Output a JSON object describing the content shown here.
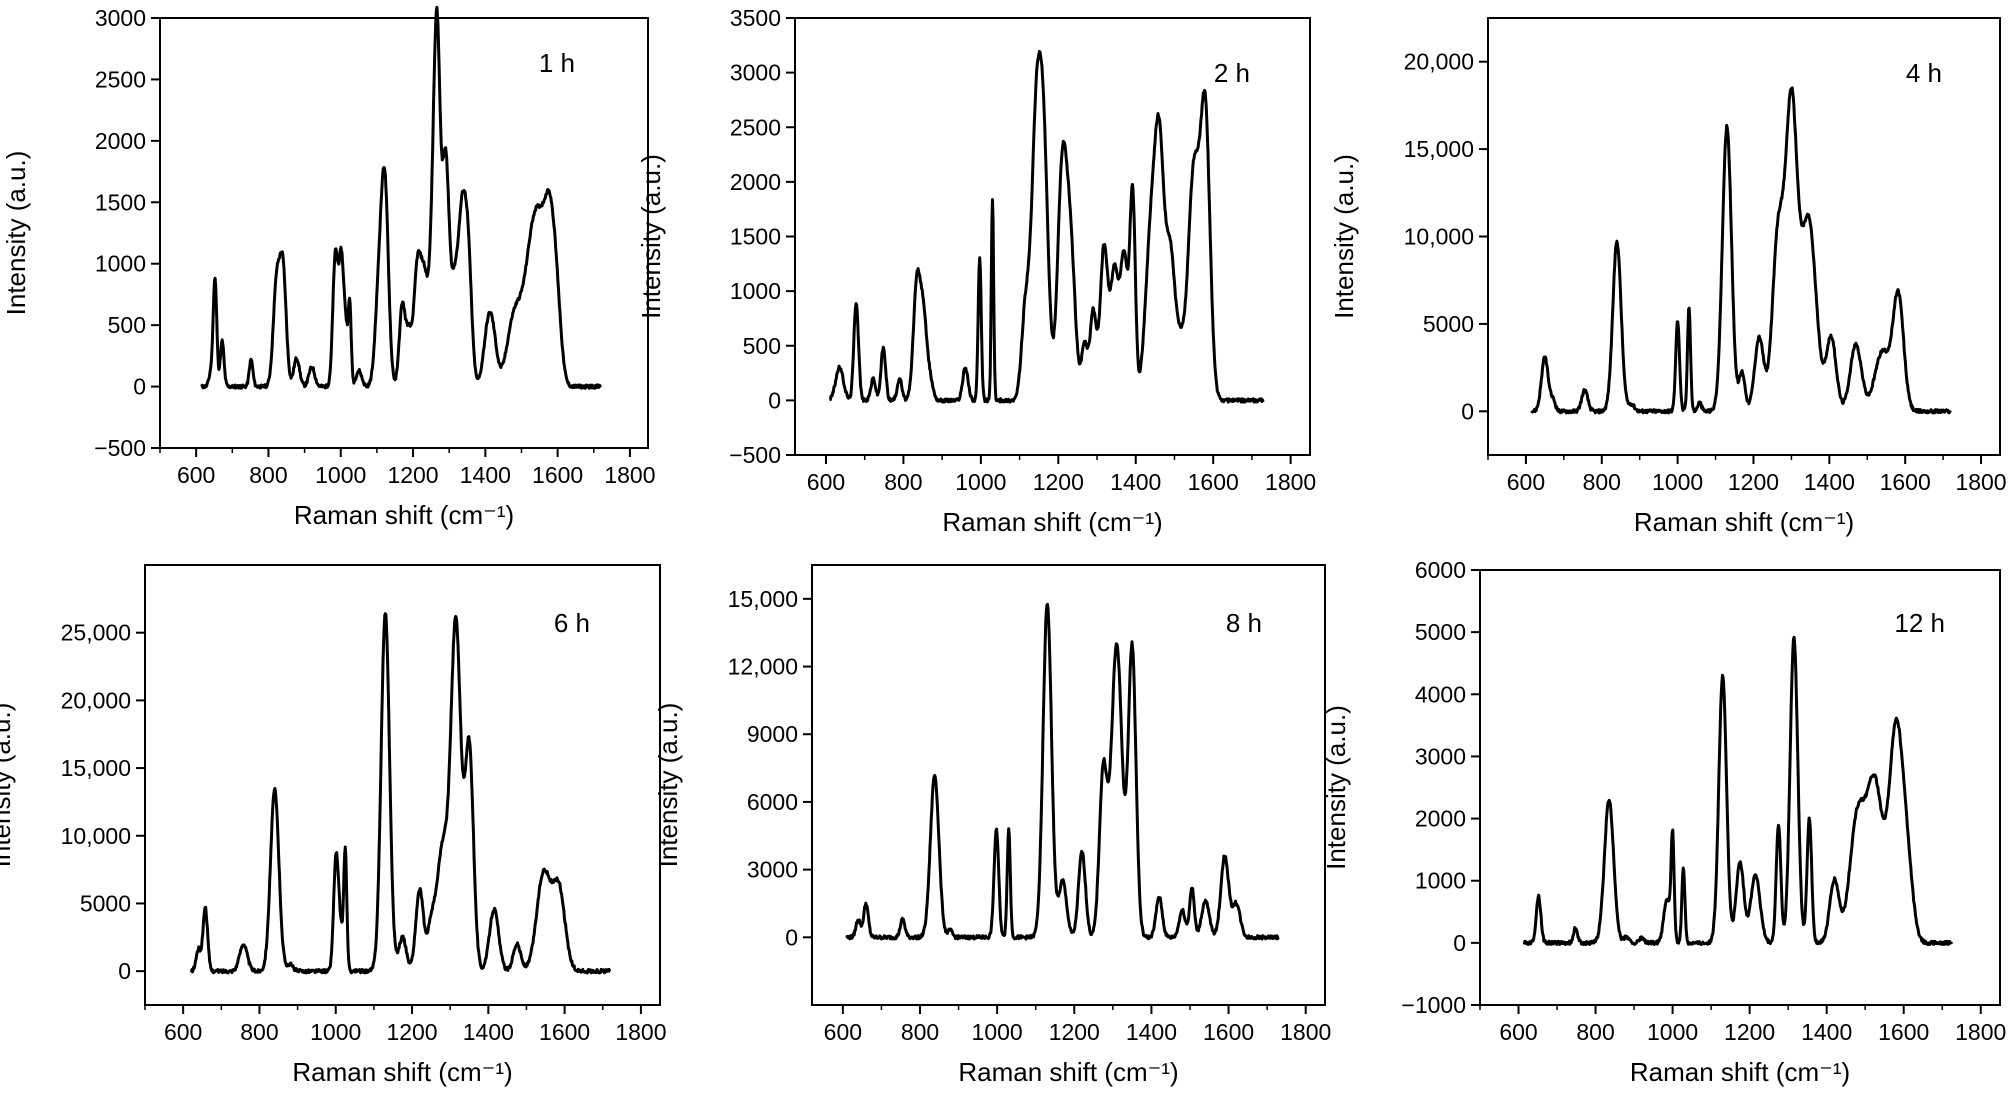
{
  "figure": {
    "line_color": "#000000",
    "background": "#ffffff"
  },
  "chart_data": [
    {
      "type": "line",
      "label": "1 h",
      "xlabel": "Raman shift (cm⁻¹)",
      "ylabel": "Intensity (a.u.)",
      "xlim": [
        500,
        1850
      ],
      "ylim": [
        -500,
        3000
      ],
      "xticks": [
        600,
        800,
        1000,
        1200,
        1400,
        1600,
        1800
      ],
      "yticks": [
        -500,
        0,
        500,
        1000,
        1500,
        2000,
        2500,
        3000
      ],
      "ytick_labels": [
        "−500",
        "0",
        "500",
        "1000",
        "1500",
        "2000",
        "2500",
        "3000"
      ],
      "baseline": 0,
      "peaks": [
        [
          640,
          100,
          5
        ],
        [
          652,
          880,
          5
        ],
        [
          672,
          370,
          5
        ],
        [
          752,
          220,
          5
        ],
        [
          822,
          800,
          9
        ],
        [
          840,
          950,
          9
        ],
        [
          878,
          230,
          8
        ],
        [
          920,
          160,
          8
        ],
        [
          985,
          1050,
          7
        ],
        [
          1002,
          1050,
          7
        ],
        [
          1015,
          350,
          5
        ],
        [
          1025,
          660,
          4
        ],
        [
          1050,
          130,
          8
        ],
        [
          1105,
          700,
          10
        ],
        [
          1122,
          1600,
          10
        ],
        [
          1170,
          650,
          8
        ],
        [
          1188,
          400,
          8
        ],
        [
          1212,
          950,
          10
        ],
        [
          1232,
          800,
          10
        ],
        [
          1258,
          1550,
          10
        ],
        [
          1268,
          1900,
          8
        ],
        [
          1290,
          1850,
          10
        ],
        [
          1315,
          750,
          10
        ],
        [
          1335,
          1200,
          10
        ],
        [
          1352,
          1050,
          10
        ],
        [
          1405,
          350,
          12
        ],
        [
          1420,
          380,
          12
        ],
        [
          1480,
          550,
          20
        ],
        [
          1520,
          560,
          20
        ],
        [
          1548,
          1150,
          22
        ],
        [
          1580,
          1050,
          15
        ],
        [
          1600,
          400,
          12
        ]
      ],
      "x_start": 615,
      "x_end": 1720
    },
    {
      "type": "line",
      "label": "2 h",
      "xlabel": "Raman shift (cm⁻¹)",
      "ylabel": "Intensity (a.u.)",
      "xlim": [
        520,
        1850
      ],
      "ylim": [
        -500,
        3500
      ],
      "xticks": [
        600,
        800,
        1000,
        1200,
        1400,
        1600,
        1800
      ],
      "yticks": [
        -500,
        0,
        500,
        1000,
        1500,
        2000,
        2500,
        3000,
        3500
      ],
      "ytick_labels": [
        "−500",
        "0",
        "500",
        "1000",
        "1500",
        "2000",
        "2500",
        "3000",
        "3500"
      ],
      "baseline": 0,
      "peaks": [
        [
          635,
          300,
          10
        ],
        [
          678,
          900,
          6
        ],
        [
          722,
          200,
          6
        ],
        [
          748,
          480,
          6
        ],
        [
          790,
          200,
          6
        ],
        [
          835,
          1100,
          9
        ],
        [
          852,
          700,
          8
        ],
        [
          868,
          200,
          8
        ],
        [
          960,
          300,
          7
        ],
        [
          997,
          1300,
          4
        ],
        [
          1030,
          1850,
          3
        ],
        [
          1115,
          800,
          10
        ],
        [
          1142,
          2300,
          12
        ],
        [
          1162,
          2200,
          12
        ],
        [
          1210,
          2050,
          12
        ],
        [
          1232,
          1300,
          12
        ],
        [
          1268,
          500,
          8
        ],
        [
          1290,
          800,
          8
        ],
        [
          1318,
          1400,
          10
        ],
        [
          1345,
          1150,
          10
        ],
        [
          1370,
          1300,
          10
        ],
        [
          1392,
          1850,
          7
        ],
        [
          1440,
          1500,
          15
        ],
        [
          1462,
          1950,
          12
        ],
        [
          1490,
          1300,
          12
        ],
        [
          1515,
          400,
          10
        ],
        [
          1550,
          2100,
          15
        ],
        [
          1580,
          2500,
          12
        ]
      ],
      "x_start": 610,
      "x_end": 1730
    },
    {
      "type": "line",
      "label": "4 h",
      "xlabel": "Raman shift (cm⁻¹)",
      "ylabel": "Intensity (a.u.)",
      "xlim": [
        500,
        1850
      ],
      "ylim": [
        -2500,
        22500
      ],
      "xticks": [
        600,
        800,
        1000,
        1200,
        1400,
        1600,
        1800
      ],
      "yticks": [
        0,
        5000,
        10000,
        15000,
        20000
      ],
      "ytick_labels": [
        "0",
        "5000",
        "10,000",
        "15,000",
        "20,000"
      ],
      "baseline": 0,
      "peaks": [
        [
          650,
          3100,
          9
        ],
        [
          672,
          600,
          6
        ],
        [
          755,
          1200,
          8
        ],
        [
          840,
          9700,
          11
        ],
        [
          878,
          400,
          8
        ],
        [
          1000,
          5200,
          5
        ],
        [
          1030,
          6000,
          4
        ],
        [
          1058,
          500,
          5
        ],
        [
          1130,
          16300,
          12
        ],
        [
          1170,
          2200,
          8
        ],
        [
          1215,
          4200,
          12
        ],
        [
          1265,
          10000,
          15
        ],
        [
          1300,
          17000,
          15
        ],
        [
          1345,
          11000,
          20
        ],
        [
          1405,
          4200,
          13
        ],
        [
          1470,
          3800,
          15
        ],
        [
          1540,
          3400,
          20
        ],
        [
          1582,
          6500,
          14
        ]
      ],
      "x_start": 615,
      "x_end": 1720
    },
    {
      "type": "line",
      "label": "6 h",
      "xlabel": "Raman shift (cm⁻¹)",
      "ylabel": "Intensity (a.u.)",
      "xlim": [
        500,
        1850
      ],
      "ylim": [
        -2500,
        30000
      ],
      "xticks": [
        600,
        800,
        1000,
        1200,
        1400,
        1600,
        1800
      ],
      "yticks": [
        0,
        5000,
        10000,
        15000,
        20000,
        25000
      ],
      "ytick_labels": [
        "0",
        "5000",
        "10,000",
        "15,000",
        "20,000",
        "25,000"
      ],
      "baseline": 0,
      "peaks": [
        [
          640,
          1600,
          6
        ],
        [
          658,
          4700,
          6
        ],
        [
          758,
          2000,
          10
        ],
        [
          840,
          13400,
          11
        ],
        [
          880,
          500,
          8
        ],
        [
          1000,
          7000,
          6
        ],
        [
          1025,
          8500,
          4
        ],
        [
          1010,
          3500,
          8
        ],
        [
          1130,
          26500,
          11
        ],
        [
          1175,
          2500,
          10
        ],
        [
          1220,
          6000,
          10
        ],
        [
          1250,
          3000,
          10
        ],
        [
          1280,
          9000,
          15
        ],
        [
          1315,
          25500,
          13
        ],
        [
          1350,
          16500,
          11
        ],
        [
          1415,
          4600,
          12
        ],
        [
          1475,
          2000,
          10
        ],
        [
          1545,
          7200,
          18
        ],
        [
          1585,
          6000,
          16
        ]
      ],
      "x_start": 620,
      "x_end": 1720
    },
    {
      "type": "line",
      "label": "8 h",
      "xlabel": "Raman shift (cm⁻¹)",
      "ylabel": "Intensity (a.u.)",
      "xlim": [
        520,
        1850
      ],
      "ylim": [
        -3000,
        16500
      ],
      "xticks": [
        600,
        800,
        1000,
        1200,
        1400,
        1600,
        1800
      ],
      "yticks": [
        0,
        3000,
        6000,
        9000,
        12000,
        15000
      ],
      "ytick_labels": [
        "0",
        "3000",
        "6000",
        "9000",
        "12,000",
        "15,000"
      ],
      "baseline": 0,
      "peaks": [
        [
          640,
          800,
          6
        ],
        [
          660,
          1500,
          6
        ],
        [
          755,
          800,
          6
        ],
        [
          838,
          7200,
          11
        ],
        [
          878,
          300,
          6
        ],
        [
          998,
          4800,
          6
        ],
        [
          1030,
          4800,
          4
        ],
        [
          1130,
          14800,
          11
        ],
        [
          1170,
          2500,
          10
        ],
        [
          1220,
          3800,
          9
        ],
        [
          1275,
          7200,
          10
        ],
        [
          1310,
          13000,
          14
        ],
        [
          1350,
          12800,
          10
        ],
        [
          1420,
          1800,
          8
        ],
        [
          1480,
          1200,
          8
        ],
        [
          1505,
          2200,
          6
        ],
        [
          1540,
          1600,
          10
        ],
        [
          1590,
          3600,
          10
        ],
        [
          1620,
          1500,
          10
        ]
      ],
      "x_start": 610,
      "x_end": 1730
    },
    {
      "type": "line",
      "label": "12 h",
      "xlabel": "Raman shift (cm⁻¹)",
      "ylabel": "Intensity (a.u.)",
      "xlim": [
        500,
        1850
      ],
      "ylim": [
        -1000,
        6000
      ],
      "xticks": [
        600,
        800,
        1000,
        1200,
        1400,
        1600,
        1800
      ],
      "yticks": [
        -1000,
        0,
        1000,
        2000,
        3000,
        4000,
        5000,
        6000
      ],
      "ytick_labels": [
        "−1000",
        "0",
        "1000",
        "2000",
        "3000",
        "4000",
        "5000",
        "6000"
      ],
      "baseline": 0,
      "peaks": [
        [
          652,
          750,
          6
        ],
        [
          748,
          250,
          5
        ],
        [
          835,
          2300,
          12
        ],
        [
          880,
          100,
          6
        ],
        [
          920,
          80,
          6
        ],
        [
          985,
          700,
          8
        ],
        [
          1000,
          1700,
          4
        ],
        [
          1028,
          1200,
          4
        ],
        [
          1130,
          4300,
          10
        ],
        [
          1175,
          1300,
          10
        ],
        [
          1215,
          1100,
          12
        ],
        [
          1275,
          1900,
          6
        ],
        [
          1315,
          4900,
          10
        ],
        [
          1355,
          2000,
          6
        ],
        [
          1420,
          1000,
          12
        ],
        [
          1480,
          2000,
          20
        ],
        [
          1525,
          2500,
          20
        ],
        [
          1580,
          3400,
          18
        ],
        [
          1610,
          1000,
          15
        ]
      ],
      "x_start": 615,
      "x_end": 1725
    }
  ]
}
